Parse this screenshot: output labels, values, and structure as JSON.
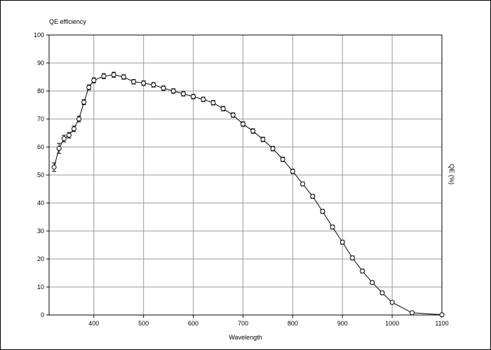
{
  "chart_data": {
    "type": "line",
    "title": "QE efficiency",
    "xlabel": "Wavelength",
    "ylabel": "QE (%)",
    "xlim": [
      310,
      1100
    ],
    "ylim": [
      0,
      100
    ],
    "x_ticks": [
      400,
      500,
      600,
      700,
      800,
      900,
      1000,
      1100
    ],
    "y_ticks": [
      0,
      10,
      20,
      30,
      40,
      50,
      60,
      70,
      80,
      90,
      100
    ],
    "grid": true,
    "series": [
      {
        "x": [
          320,
          330,
          340,
          350,
          360,
          370,
          380,
          390,
          400,
          420,
          440,
          460,
          480,
          500,
          520,
          540,
          560,
          580,
          600,
          620,
          640,
          660,
          680,
          700,
          720,
          740,
          760,
          780,
          800,
          820,
          840,
          860,
          880,
          900,
          920,
          940,
          960,
          980,
          1000,
          1040,
          1100
        ],
        "y": [
          52.8,
          59.5,
          63.0,
          64.2,
          66.5,
          70.0,
          76.0,
          81.3,
          83.8,
          85.3,
          85.8,
          85.0,
          83.3,
          82.8,
          82.2,
          81.0,
          80.0,
          79.0,
          78.0,
          77.0,
          75.8,
          73.7,
          71.4,
          68.2,
          65.7,
          62.7,
          59.4,
          55.6,
          51.3,
          46.8,
          42.4,
          37.0,
          31.4,
          26.0,
          20.4,
          15.7,
          11.6,
          7.9,
          4.5,
          0.8,
          0.1
        ],
        "err": [
          1.5,
          1.8,
          1.2,
          1.0,
          1.0,
          1.0,
          0.9,
          0.9,
          0.9,
          0.9,
          0.9,
          0.8,
          0.8,
          0.8,
          0.8,
          0.8,
          0.8,
          0.8,
          0.8,
          0.8,
          0.8,
          0.8,
          0.8,
          0.8,
          0.8,
          0.8,
          0.8,
          0.8,
          0.8,
          0.7,
          0.7,
          0.7,
          0.7,
          0.7,
          0.7,
          0.7,
          0.6,
          0.6,
          0.5,
          0.4,
          0.2
        ],
        "color": "#000000"
      }
    ]
  }
}
